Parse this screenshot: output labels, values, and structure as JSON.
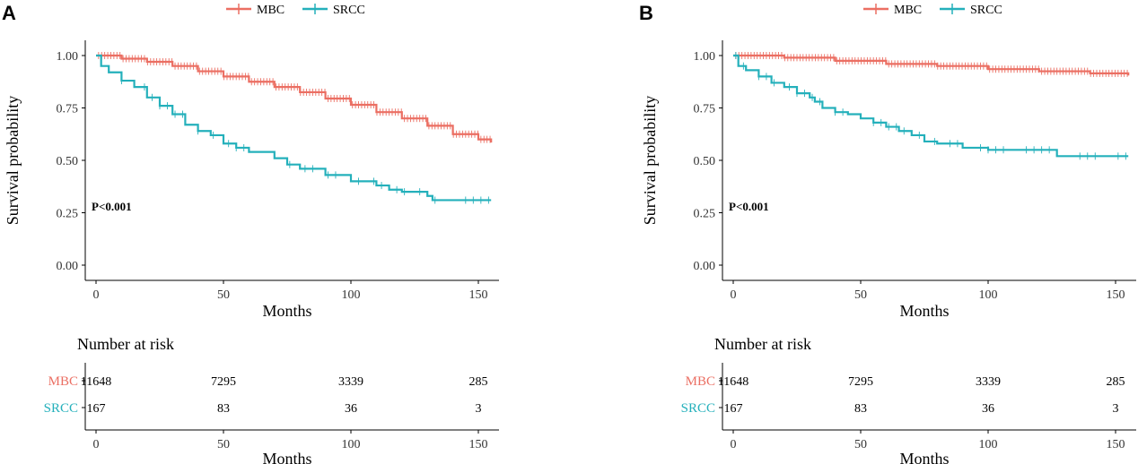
{
  "colors": {
    "mbc": "#EB6F63",
    "srcc": "#24B0BB",
    "axis": "#000000"
  },
  "legend": [
    {
      "name": "MBC",
      "color": "#EB6F63"
    },
    {
      "name": "SRCC",
      "color": "#24B0BB"
    }
  ],
  "risk_table": {
    "title": "Number at risk",
    "x_label": "Months"
  },
  "chart_data": [
    {
      "type": "line",
      "panel_label": "A",
      "title": "",
      "xlabel": "Months",
      "ylabel": "Survival probability",
      "xlim": [
        -5,
        155
      ],
      "ylim": [
        0,
        1.05
      ],
      "xticks": [
        "0",
        "50",
        "100",
        "150"
      ],
      "yticks": [
        "0.00",
        "0.25",
        "0.50",
        "0.75",
        "1.00"
      ],
      "legend_position": "top-center",
      "annotation": "P<0.001",
      "series": [
        {
          "name": "MBC",
          "color": "#EB6F63",
          "x": [
            0,
            10,
            20,
            30,
            40,
            50,
            60,
            70,
            80,
            90,
            100,
            110,
            120,
            130,
            140,
            150,
            155
          ],
          "y": [
            1.0,
            0.985,
            0.97,
            0.95,
            0.925,
            0.9,
            0.875,
            0.85,
            0.825,
            0.795,
            0.765,
            0.73,
            0.7,
            0.665,
            0.625,
            0.6,
            0.585
          ]
        },
        {
          "name": "SRCC",
          "color": "#24B0BB",
          "x": [
            0,
            2,
            5,
            10,
            15,
            20,
            25,
            30,
            35,
            40,
            45,
            50,
            55,
            60,
            70,
            75,
            80,
            90,
            100,
            110,
            115,
            120,
            125,
            130,
            132,
            140,
            155
          ],
          "y": [
            1.0,
            0.95,
            0.92,
            0.88,
            0.85,
            0.8,
            0.76,
            0.72,
            0.67,
            0.64,
            0.62,
            0.58,
            0.56,
            0.54,
            0.51,
            0.48,
            0.46,
            0.43,
            0.4,
            0.38,
            0.36,
            0.35,
            0.35,
            0.33,
            0.31,
            0.31,
            0.31
          ]
        }
      ],
      "risk_table": {
        "rows": [
          {
            "name": "MBC",
            "color": "#EB6F63",
            "values": [
              "11648",
              "7295",
              "3339",
              "285"
            ]
          },
          {
            "name": "SRCC",
            "color": "#24B0BB",
            "values": [
              "167",
              "83",
              "36",
              "3"
            ]
          }
        ],
        "xticks": [
          "0",
          "50",
          "100",
          "150"
        ],
        "xlabel": "Months"
      }
    },
    {
      "type": "line",
      "panel_label": "B",
      "title": "",
      "xlabel": "Months",
      "ylabel": "Survival probability",
      "xlim": [
        -5,
        155
      ],
      "ylim": [
        0,
        1.05
      ],
      "xticks": [
        "0",
        "50",
        "100",
        "150"
      ],
      "yticks": [
        "0.00",
        "0.25",
        "0.50",
        "0.75",
        "1.00"
      ],
      "legend_position": "top-center",
      "annotation": "P<0.001",
      "series": [
        {
          "name": "MBC",
          "color": "#EB6F63",
          "x": [
            0,
            20,
            40,
            60,
            80,
            100,
            120,
            140,
            155
          ],
          "y": [
            1.0,
            0.99,
            0.975,
            0.96,
            0.95,
            0.935,
            0.925,
            0.915,
            0.905
          ]
        },
        {
          "name": "SRCC",
          "color": "#24B0BB",
          "x": [
            0,
            2,
            5,
            10,
            15,
            20,
            25,
            30,
            32,
            35,
            40,
            45,
            50,
            55,
            60,
            65,
            70,
            75,
            80,
            90,
            100,
            110,
            120,
            127,
            130,
            155
          ],
          "y": [
            1.0,
            0.95,
            0.93,
            0.9,
            0.87,
            0.85,
            0.82,
            0.8,
            0.78,
            0.75,
            0.73,
            0.72,
            0.7,
            0.68,
            0.66,
            0.64,
            0.62,
            0.59,
            0.58,
            0.56,
            0.55,
            0.55,
            0.55,
            0.52,
            0.52,
            0.52
          ]
        }
      ],
      "risk_table": {
        "rows": [
          {
            "name": "MBC",
            "color": "#EB6F63",
            "values": [
              "11648",
              "7295",
              "3339",
              "285"
            ]
          },
          {
            "name": "SRCC",
            "color": "#24B0BB",
            "values": [
              "167",
              "83",
              "36",
              "3"
            ]
          }
        ],
        "xticks": [
          "0",
          "50",
          "100",
          "150"
        ],
        "xlabel": "Months"
      }
    }
  ]
}
